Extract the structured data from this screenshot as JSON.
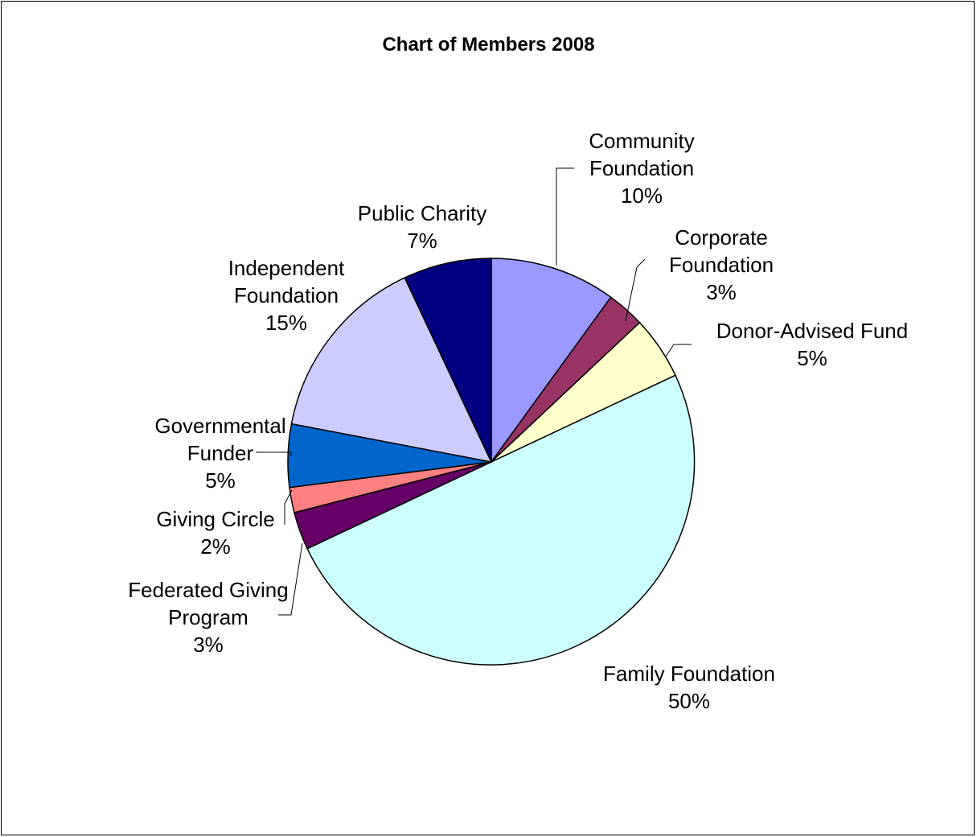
{
  "chart_data": {
    "type": "pie",
    "title": "Chart of Members 2008",
    "slices": [
      {
        "label": [
          "Community",
          "Foundation",
          "10%"
        ],
        "value": 10,
        "color": "#9999FF"
      },
      {
        "label": [
          "Corporate",
          "Foundation",
          "3%"
        ],
        "value": 3,
        "color": "#993366"
      },
      {
        "label": [
          "Donor-Advised Fund",
          "5%"
        ],
        "value": 5,
        "color": "#FFFFCC"
      },
      {
        "label": [
          "Family Foundation",
          "50%"
        ],
        "value": 50,
        "color": "#CCFFFF"
      },
      {
        "label": [
          "Federated Giving",
          "Program",
          "3%"
        ],
        "value": 3,
        "color": "#660066"
      },
      {
        "label": [
          "Giving Circle",
          "2%"
        ],
        "value": 2,
        "color": "#FF8080"
      },
      {
        "label": [
          "Governmental",
          "Funder",
          "5%"
        ],
        "value": 5,
        "color": "#0066CC"
      },
      {
        "label": [
          "Independent",
          "Foundation",
          "15%"
        ],
        "value": 15,
        "color": "#CCCCFF"
      },
      {
        "label": [
          "Public Charity",
          "7%"
        ],
        "value": 7,
        "color": "#000080"
      }
    ]
  }
}
